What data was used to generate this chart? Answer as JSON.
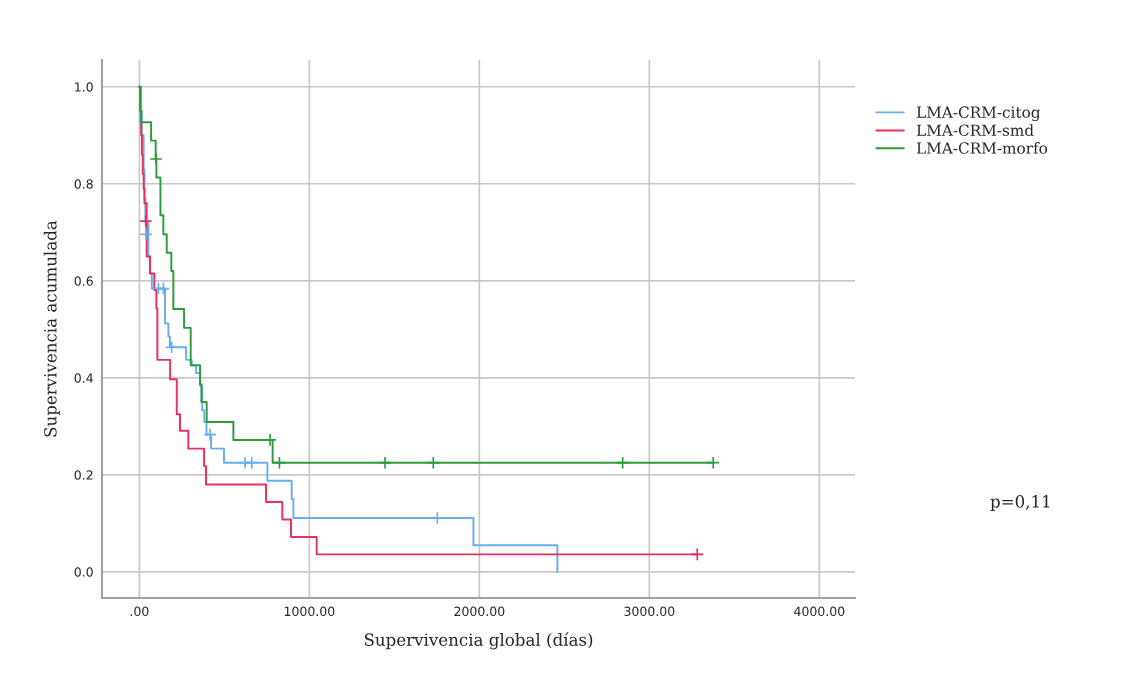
{
  "chart_data": {
    "type": "step",
    "xlabel": "Supervivencia global (días)",
    "ylabel": "Supervivencia acumulada",
    "xlim": [
      -220,
      4210
    ],
    "ylim": [
      -0.054,
      1.055
    ],
    "xticks": [
      {
        "value": 0,
        "label": ".00"
      },
      {
        "value": 1000,
        "label": "1000.00"
      },
      {
        "value": 2000,
        "label": "2000.00"
      },
      {
        "value": 3000,
        "label": "3000.00"
      },
      {
        "value": 4000,
        "label": "4000.00"
      }
    ],
    "yticks": [
      {
        "value": 0,
        "label": "0.0"
      },
      {
        "value": 0.2,
        "label": "0.2"
      },
      {
        "value": 0.4,
        "label": "0.4"
      },
      {
        "value": 0.6,
        "label": "0.6"
      },
      {
        "value": 0.8,
        "label": "0.8"
      },
      {
        "value": 1.0,
        "label": "1.0"
      }
    ],
    "grid": true,
    "legend": "top right",
    "annotations": [
      "p=0,11"
    ],
    "series": [
      {
        "name": "LMA-CRM-citog",
        "color": "#6aaef0",
        "x": [
          0,
          5,
          15,
          25,
          30,
          35,
          53,
          63,
          73,
          151,
          171,
          180,
          275,
          308,
          334,
          357,
          370,
          382,
          395,
          422,
          498,
          753,
          896,
          906,
          1965,
          2459
        ],
        "values": [
          1.0,
          0.95,
          0.9,
          0.83,
          0.77,
          0.72,
          0.65,
          0.615,
          0.584,
          0.512,
          0.485,
          0.463,
          0.437,
          0.426,
          0.41,
          0.384,
          0.333,
          0.309,
          0.283,
          0.254,
          0.225,
          0.188,
          0.15,
          0.111,
          0.055,
          0.0
        ]
      },
      {
        "name": "LMA-CRM-smd",
        "color": "#e8305c",
        "x": [
          0,
          5,
          10,
          15,
          20,
          25,
          30,
          43,
          63,
          88,
          100,
          106,
          181,
          220,
          239,
          288,
          381,
          392,
          745,
          841,
          892,
          1043,
          3282
        ],
        "values": [
          1.0,
          0.95,
          0.9,
          0.86,
          0.82,
          0.79,
          0.76,
          0.65,
          0.615,
          0.581,
          0.543,
          0.437,
          0.397,
          0.325,
          0.291,
          0.254,
          0.218,
          0.18,
          0.144,
          0.108,
          0.072,
          0.036,
          0.036
        ]
      },
      {
        "name": "LMA-CRM-morfo",
        "color": "#2e9c3a",
        "x": [
          0,
          8,
          69,
          96,
          100,
          124,
          141,
          161,
          188,
          200,
          263,
          302,
          357,
          365,
          396,
          553,
          784,
          3376
        ],
        "values": [
          1.0,
          0.927,
          0.889,
          0.851,
          0.813,
          0.735,
          0.696,
          0.658,
          0.62,
          0.542,
          0.503,
          0.426,
          0.387,
          0.35,
          0.309,
          0.272,
          0.225,
          0.225
        ]
      },
      {
        "type": "scatter",
        "marker": "cross",
        "color": "#6aaef0",
        "x": [
          39,
          112,
          141,
          190,
          416,
          622,
          661,
          1753
        ],
        "values": [
          0.696,
          0.584,
          0.584,
          0.463,
          0.283,
          0.225,
          0.225,
          0.111
        ]
      },
      {
        "type": "scatter",
        "marker": "cross",
        "color": "#e8305c",
        "x": [
          38,
          3282
        ],
        "values": [
          0.723,
          0.036
        ]
      },
      {
        "type": "scatter",
        "marker": "cross",
        "color": "#2e9c3a",
        "x": [
          98,
          769,
          824,
          1445,
          1729,
          2843,
          3376
        ],
        "values": [
          0.851,
          0.272,
          0.225,
          0.225,
          0.225,
          0.225,
          0.225
        ]
      }
    ]
  }
}
